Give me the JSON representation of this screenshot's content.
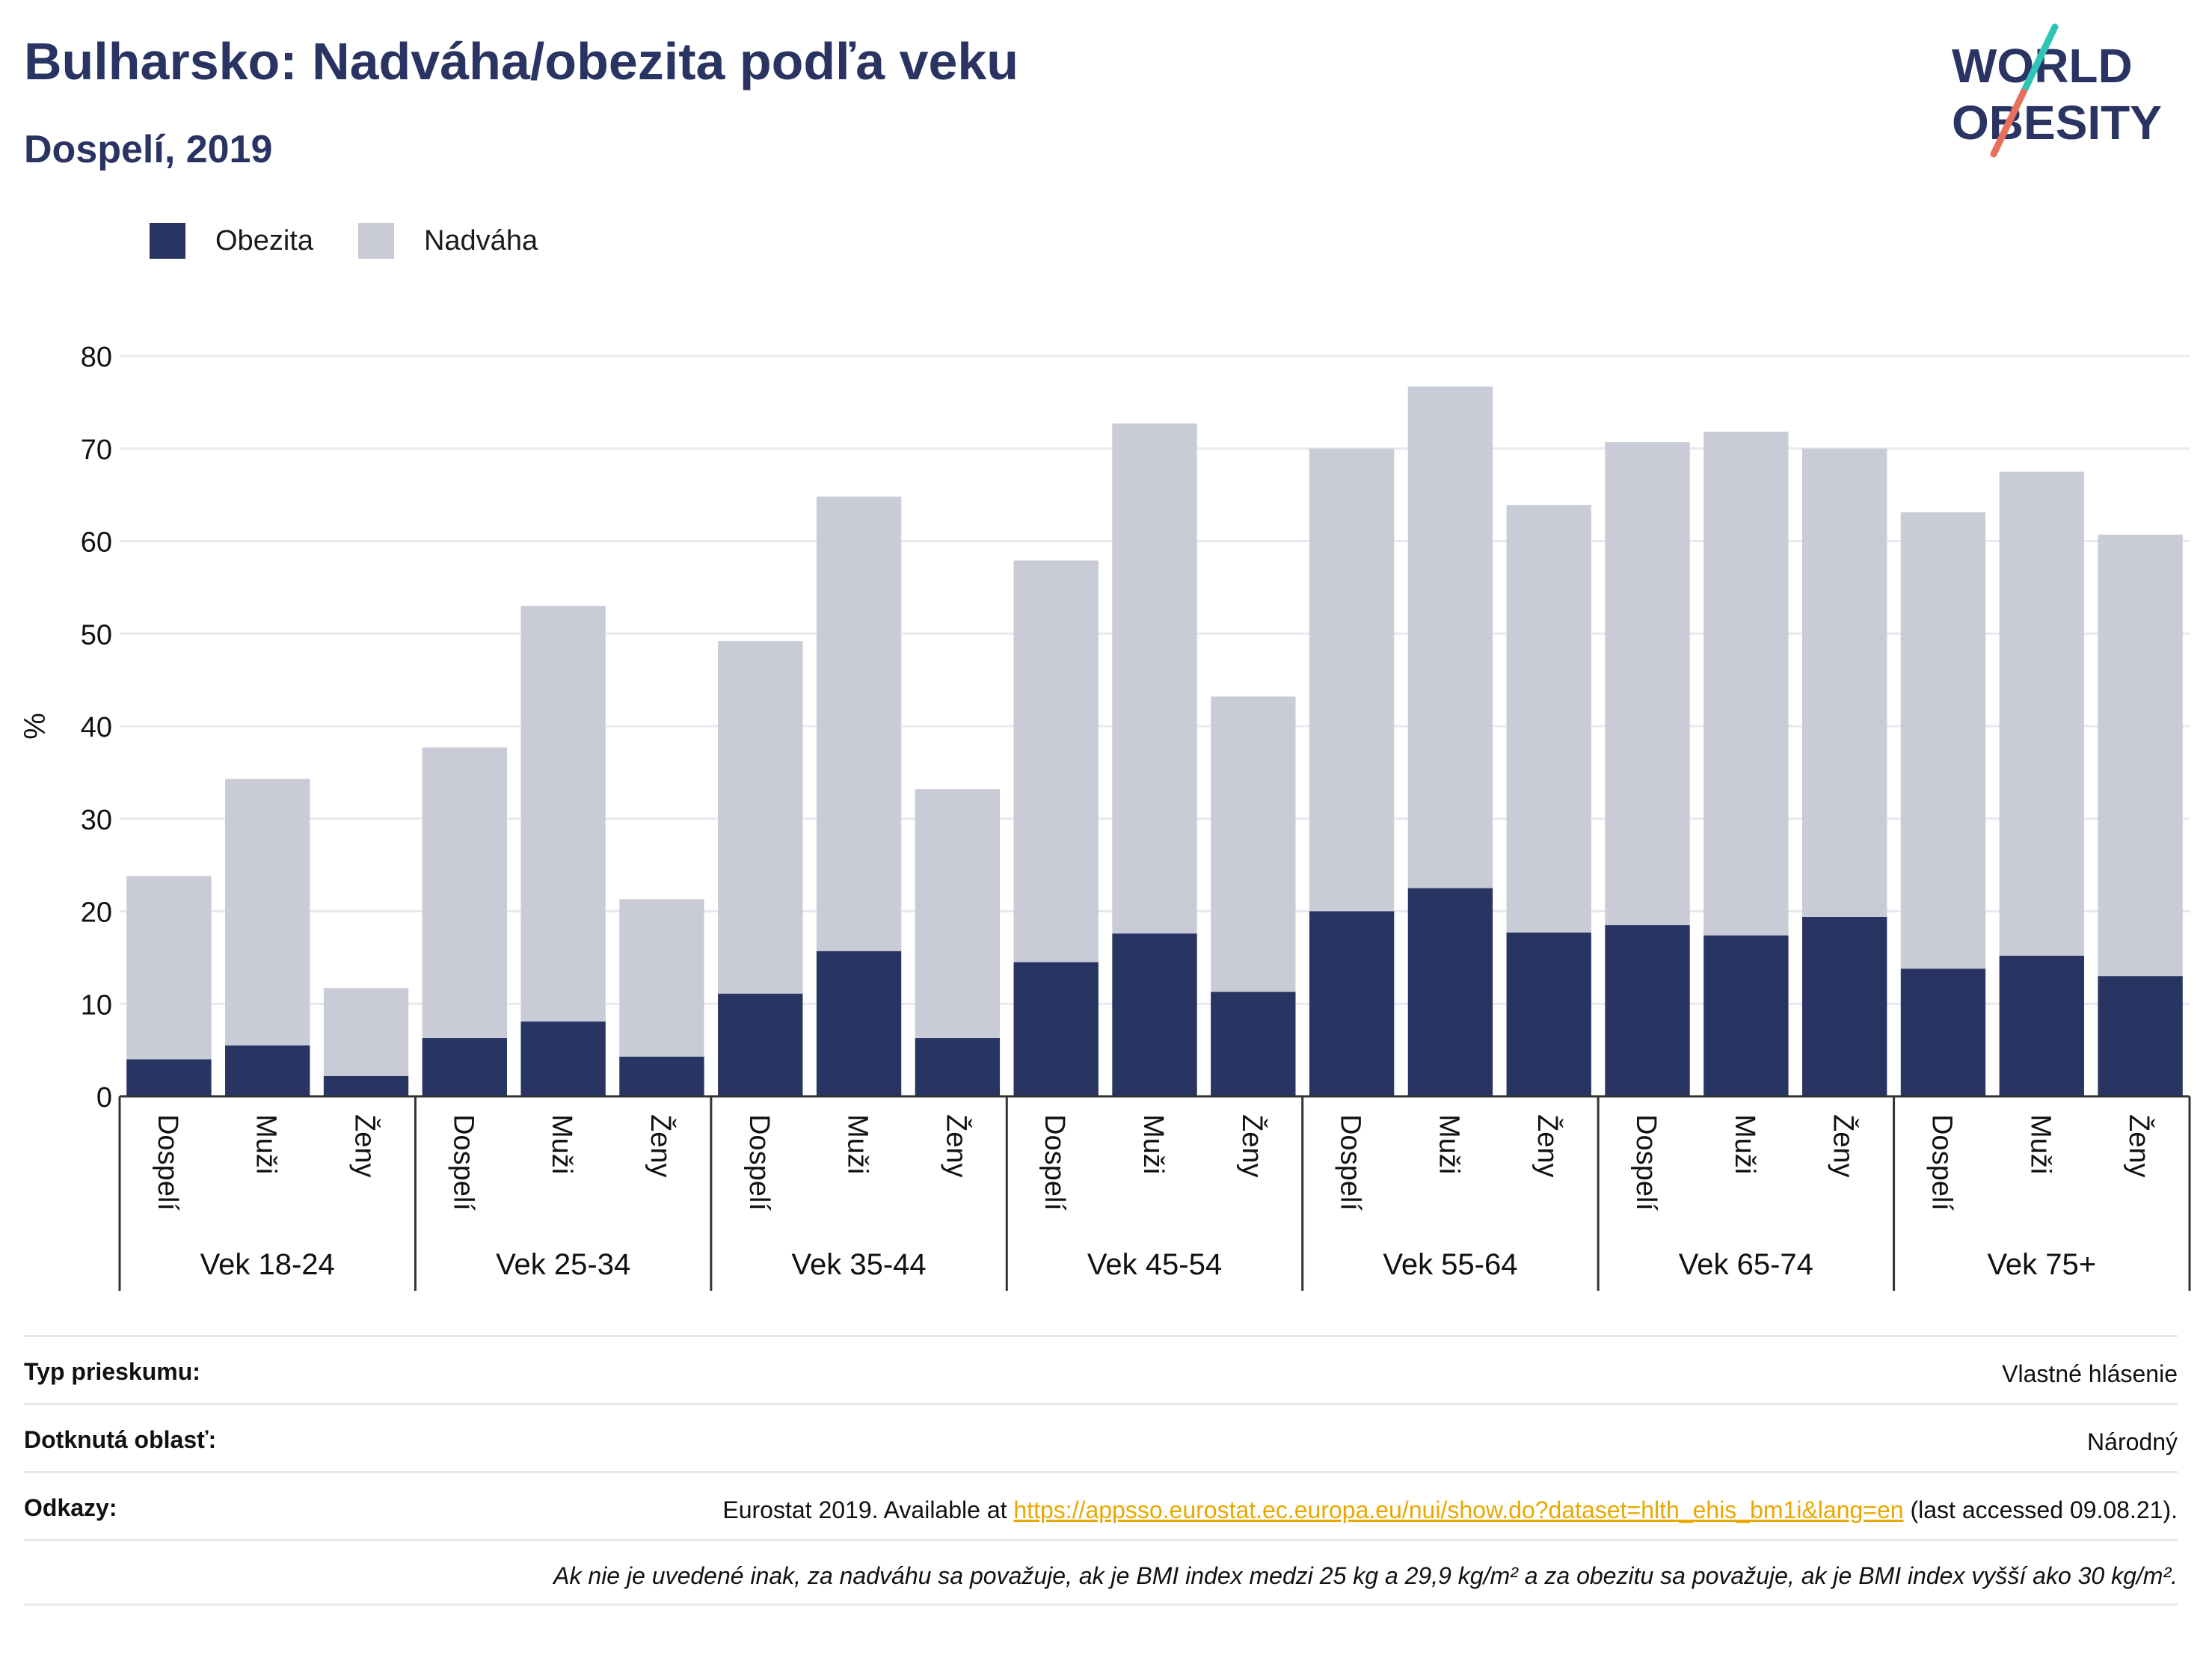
{
  "header": {
    "title": "Bulharsko: Nadváha/obezita podľa veku",
    "subtitle": "Dospelí, 2019"
  },
  "logo": {
    "line1": "WORLD",
    "line2": "OBESITY",
    "accent_colors": [
      "#2ec4b6",
      "#e8705f"
    ]
  },
  "colors": {
    "obesity": "#283462",
    "overweight": "#c9cbd6",
    "axis_text": "#111111",
    "gridline": "#e8e8ee",
    "link": "#e8a800"
  },
  "legend": [
    {
      "label": "Obezita",
      "color": "#283462"
    },
    {
      "label": "Nadváha",
      "color": "#c9cbd6"
    }
  ],
  "chart_data": {
    "type": "bar",
    "stacked": true,
    "title": "Bulharsko: Nadváha/obezita podľa veku",
    "subtitle": "Dospelí, 2019",
    "ylabel": "%",
    "ylim": [
      0,
      80
    ],
    "yticks": [
      0,
      10,
      20,
      30,
      40,
      50,
      60,
      70,
      80
    ],
    "grid": true,
    "legend_position": "top-left",
    "groups": [
      "Vek 18-24",
      "Vek 25-34",
      "Vek 35-44",
      "Vek 45-54",
      "Vek 55-64",
      "Vek 65-74",
      "Vek 75+"
    ],
    "subcategories": [
      "Dospelí",
      "Muži",
      "Ženy"
    ],
    "series": [
      {
        "name": "Obezita",
        "color": "#283462",
        "values": [
          4.0,
          5.5,
          2.2,
          6.3,
          8.1,
          4.3,
          11.1,
          15.7,
          6.3,
          14.5,
          17.6,
          11.3,
          20.0,
          22.5,
          17.7,
          18.5,
          17.4,
          19.4,
          13.8,
          15.2,
          13.0
        ]
      },
      {
        "name": "Nadváha",
        "color": "#c9cbd6",
        "values": [
          19.8,
          28.8,
          9.5,
          31.4,
          44.9,
          17.0,
          38.1,
          49.1,
          26.9,
          43.4,
          55.1,
          31.9,
          50.0,
          54.2,
          46.2,
          52.2,
          54.4,
          50.6,
          49.3,
          52.3,
          47.7
        ]
      }
    ]
  },
  "info": {
    "survey_type": {
      "label": "Typ prieskumu:",
      "value": "Vlastné hlásenie"
    },
    "area": {
      "label": "Dotknutá oblasť:",
      "value": "Národný"
    },
    "references": {
      "label": "Odkazy:",
      "prefix": "Eurostat 2019. Available at ",
      "link": "https://appsso.eurostat.ec.europa.eu/nui/show.do?dataset=hlth_ehis_bm1i&lang=en",
      "suffix": " (last accessed 09.08.21)."
    },
    "note": "Ak nie je uvedené inak, za nadváhu sa považuje, ak je BMI index medzi 25 kg a 29,9 kg/m² a za obezitu sa považuje, ak je BMI index vyšší ako 30 kg/m²."
  }
}
